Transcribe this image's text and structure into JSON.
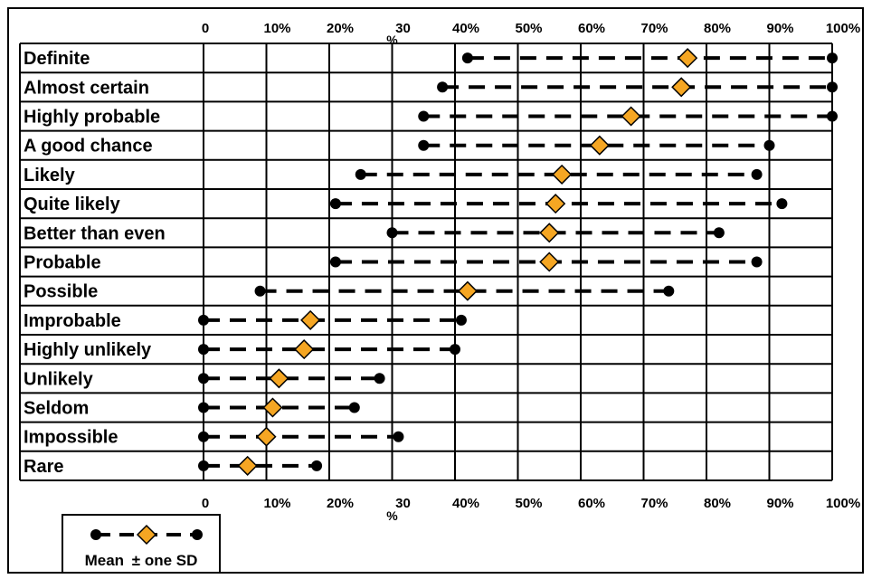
{
  "chart_data": {
    "type": "scatter",
    "xlabel": "%",
    "xlim": [
      0,
      100
    ],
    "x_ticks": [
      "0",
      "10%",
      "20%",
      "30",
      "40%",
      "50%",
      "60%",
      "70%",
      "80%",
      "90%",
      "100%"
    ],
    "x_tick_values": [
      0,
      10,
      20,
      30,
      40,
      50,
      60,
      70,
      80,
      90,
      100
    ],
    "categories": [
      "Definite",
      "Almost certain",
      "Highly probable",
      "A good chance",
      "Likely",
      "Quite likely",
      "Better than even",
      "Probable",
      "Possible",
      "Improbable",
      "Highly unlikely",
      "Unlikely",
      "Seldom",
      "Impossible",
      "Rare"
    ],
    "series": [
      {
        "name": "Mean",
        "marker": "diamond",
        "color": "#F5A623",
        "values": [
          77,
          76,
          68,
          63,
          57,
          56,
          55,
          55,
          42,
          17,
          16,
          12,
          11,
          10,
          7
        ]
      },
      {
        "name": "± one SD",
        "marker": "circle",
        "color": "#000000",
        "low": [
          42,
          38,
          35,
          35,
          25,
          21,
          30,
          21,
          9,
          0,
          0,
          0,
          0,
          0,
          0
        ],
        "high": [
          100,
          100,
          100,
          90,
          88,
          92,
          82,
          88,
          74,
          41,
          40,
          28,
          24,
          31,
          18
        ]
      }
    ],
    "grid": true,
    "legend_position": "bottom-left"
  },
  "legend": {
    "mean_label": "Mean",
    "sd_label": "± one SD"
  }
}
